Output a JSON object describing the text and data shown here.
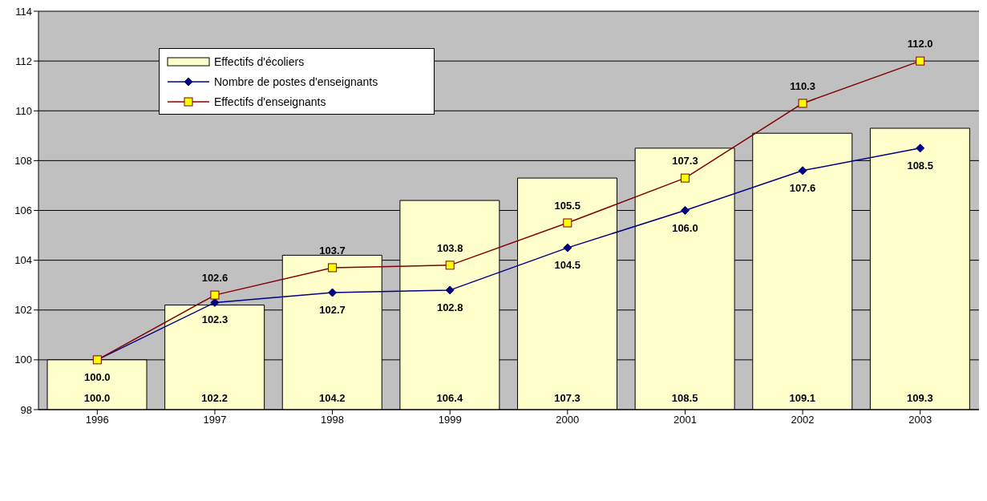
{
  "chart_data": {
    "type": "bar",
    "categories": [
      "1996",
      "1997",
      "1998",
      "1999",
      "2000",
      "2001",
      "2002",
      "2003"
    ],
    "series": [
      {
        "name": "Effectifs d'écoliers",
        "color": "#ffffcc",
        "values": [
          100.0,
          102.2,
          104.2,
          106.4,
          107.3,
          108.5,
          109.1,
          109.3
        ],
        "value_labels": [
          "100.0",
          "102.2",
          "104.2",
          "106.4",
          "107.3",
          "108.5",
          "109.1",
          "109.3"
        ]
      },
      {
        "name": "Nombre de postes d'enseignants",
        "type": "line",
        "color": "#000080",
        "marker": "diamond",
        "values": [
          100.0,
          102.3,
          102.7,
          102.8,
          104.5,
          106.0,
          107.6,
          108.5
        ],
        "value_labels": [
          "100.0",
          "102.3",
          "102.7",
          "102.8",
          "104.5",
          "106.0",
          "107.6",
          "108.5"
        ]
      },
      {
        "name": "Effectifs d'enseignants",
        "type": "line",
        "color": "#800000",
        "marker": "square",
        "values": [
          100.0,
          102.6,
          103.7,
          103.8,
          105.5,
          107.3,
          110.3,
          112.0
        ],
        "value_labels": [
          null,
          "102.6",
          "103.7",
          "103.8",
          "105.5",
          "107.3",
          "110.3",
          "112.0"
        ]
      }
    ],
    "ylim": [
      98,
      114
    ],
    "yticks": [
      98,
      100,
      102,
      104,
      106,
      108,
      110,
      112,
      114
    ],
    "grid": "y",
    "legend": "top left",
    "line_style": "solid"
  }
}
